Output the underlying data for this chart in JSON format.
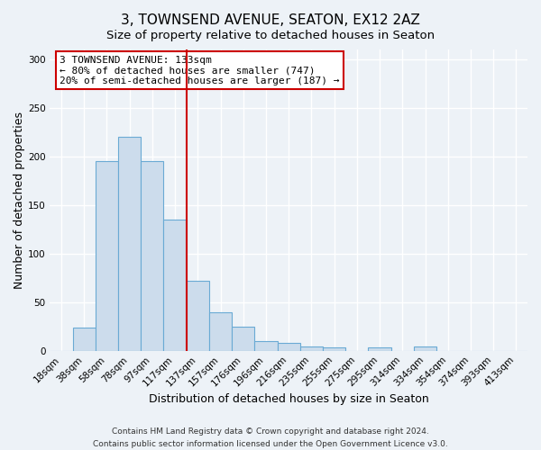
{
  "title": "3, TOWNSEND AVENUE, SEATON, EX12 2AZ",
  "subtitle": "Size of property relative to detached houses in Seaton",
  "xlabel": "Distribution of detached houses by size in Seaton",
  "ylabel": "Number of detached properties",
  "bar_labels": [
    "18sqm",
    "38sqm",
    "58sqm",
    "78sqm",
    "97sqm",
    "117sqm",
    "137sqm",
    "157sqm",
    "176sqm",
    "196sqm",
    "216sqm",
    "235sqm",
    "255sqm",
    "275sqm",
    "295sqm",
    "314sqm",
    "334sqm",
    "354sqm",
    "374sqm",
    "393sqm",
    "413sqm"
  ],
  "bar_values": [
    0,
    24,
    195,
    220,
    195,
    135,
    72,
    40,
    25,
    10,
    8,
    4,
    3,
    0,
    3,
    0,
    4,
    0,
    0,
    0,
    0
  ],
  "bar_color": "#ccdcec",
  "bar_edge_color": "#6aaad4",
  "ylim": [
    0,
    310
  ],
  "yticks": [
    0,
    50,
    100,
    150,
    200,
    250,
    300
  ],
  "vline_x_index": 6,
  "vline_color": "#cc0000",
  "annotation_title": "3 TOWNSEND AVENUE: 133sqm",
  "annotation_line1": "← 80% of detached houses are smaller (747)",
  "annotation_line2": "20% of semi-detached houses are larger (187) →",
  "annotation_box_color": "#ffffff",
  "annotation_box_edge": "#cc0000",
  "footer_line1": "Contains HM Land Registry data © Crown copyright and database right 2024.",
  "footer_line2": "Contains public sector information licensed under the Open Government Licence v3.0.",
  "background_color": "#edf2f7",
  "grid_color": "#ffffff",
  "title_fontsize": 11,
  "subtitle_fontsize": 9.5,
  "axis_label_fontsize": 9,
  "tick_fontsize": 7.5,
  "footer_fontsize": 6.5,
  "annotation_fontsize": 8
}
